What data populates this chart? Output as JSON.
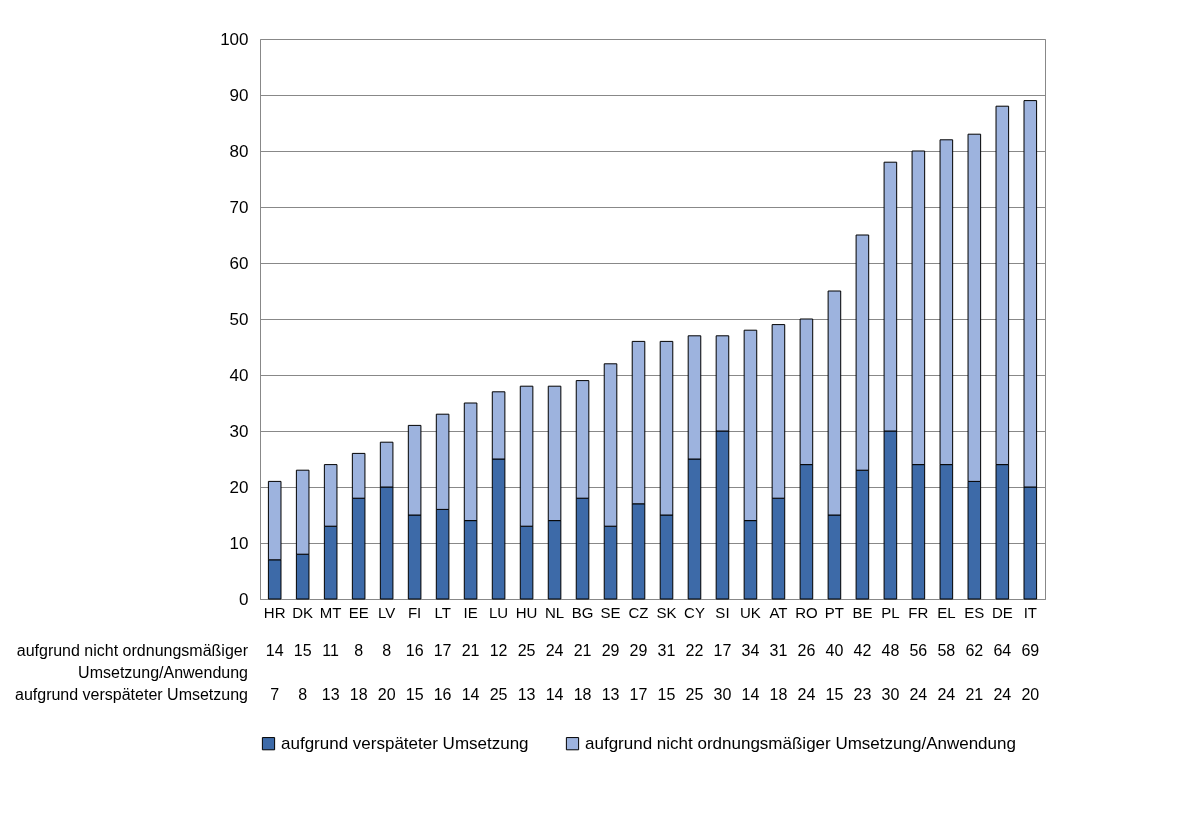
{
  "chart_data": {
    "type": "bar",
    "stacked": true,
    "categories": [
      "HR",
      "DK",
      "MT",
      "EE",
      "LV",
      "FI",
      "LT",
      "IE",
      "LU",
      "HU",
      "NL",
      "BG",
      "SE",
      "CZ",
      "SK",
      "CY",
      "SI",
      "UK",
      "AT",
      "RO",
      "PT",
      "BE",
      "PL",
      "FR",
      "EL",
      "ES",
      "DE",
      "IT"
    ],
    "series": [
      {
        "name": "aufgrund  verspäteter Umsetzung",
        "color": "#3d6aa8",
        "values": [
          7,
          8,
          13,
          18,
          20,
          15,
          16,
          14,
          25,
          13,
          14,
          18,
          13,
          17,
          15,
          25,
          30,
          14,
          18,
          24,
          15,
          23,
          30,
          24,
          24,
          21,
          24,
          20
        ]
      },
      {
        "name": "aufgrund nicht ordnungsmäßiger Umsetzung/Anwendung",
        "color": "#9db3de",
        "values": [
          14,
          15,
          11,
          8,
          8,
          16,
          17,
          21,
          12,
          25,
          24,
          21,
          29,
          29,
          31,
          22,
          17,
          34,
          31,
          26,
          40,
          42,
          48,
          56,
          58,
          62,
          64,
          69
        ]
      }
    ],
    "ylim": [
      0,
      100
    ],
    "yticks": [
      0,
      10,
      20,
      30,
      40,
      50,
      60,
      70,
      80,
      90,
      100
    ],
    "grid": "y",
    "legend": "bottom",
    "data_labels": true
  }
}
